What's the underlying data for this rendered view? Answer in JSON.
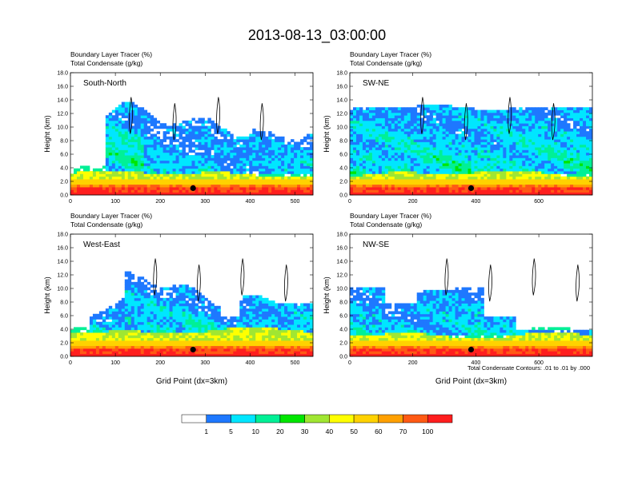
{
  "figure": {
    "title": "2013-08-13_03:00:00",
    "contour_note": "Total Condensate Contours: .01 to .01 by .000"
  },
  "colors": {
    "levels": [
      "#ffffff",
      "#1e78ff",
      "#00e6ff",
      "#00f096",
      "#00e600",
      "#a0e632",
      "#ffff00",
      "#ffd200",
      "#ffa000",
      "#ff5a14",
      "#ff1e1e"
    ],
    "contour": "#000000"
  },
  "chart_data": [
    {
      "type": "heatmap",
      "panel": "top-left",
      "label": "South-North",
      "subtitle1": "Boundary Layer Tracer   (%)",
      "subtitle2": "Total Condensate   (g/kg)",
      "ylabel": "Height (km)",
      "xlabel": "",
      "xlim": [
        0,
        540
      ],
      "ylim": [
        0,
        18
      ],
      "xticks": [
        "0",
        "100",
        "200",
        "300",
        "400",
        "500"
      ],
      "yticks": [
        "0.0",
        "2.0",
        "4.0",
        "6.0",
        "8.0",
        "10.0",
        "12.0",
        "14.0",
        "16.0",
        "18.0"
      ],
      "dot": [
        273,
        1.0
      ]
    },
    {
      "type": "heatmap",
      "panel": "top-right",
      "label": "SW-NE",
      "subtitle1": "Boundary Layer Tracer   (%)",
      "subtitle2": "Total Condensate   (g/kg)",
      "ylabel": "Height (km)",
      "xlabel": "",
      "xlim": [
        0,
        770
      ],
      "ylim": [
        0,
        18
      ],
      "xticks": [
        "0",
        "200",
        "400",
        "600"
      ],
      "yticks": [
        "0.0",
        "2.0",
        "4.0",
        "6.0",
        "8.0",
        "10.0",
        "12.0",
        "14.0",
        "16.0",
        "18.0"
      ],
      "dot": [
        385,
        1.0
      ]
    },
    {
      "type": "heatmap",
      "panel": "bottom-left",
      "label": "West-East",
      "subtitle1": "Boundary Layer Tracer   (%)",
      "subtitle2": "Total Condensate   (g/kg)",
      "ylabel": "Height (km)",
      "xlabel": "Grid Point (dx=3km)",
      "xlim": [
        0,
        540
      ],
      "ylim": [
        0,
        18
      ],
      "xticks": [
        "0",
        "100",
        "200",
        "300",
        "400",
        "500"
      ],
      "yticks": [
        "0.0",
        "2.0",
        "4.0",
        "6.0",
        "8.0",
        "10.0",
        "12.0",
        "14.0",
        "16.0",
        "18.0"
      ],
      "dot": [
        273,
        1.0
      ]
    },
    {
      "type": "heatmap",
      "panel": "bottom-right",
      "label": "NW-SE",
      "subtitle1": "Boundary Layer Tracer   (%)",
      "subtitle2": "Total Condensate   (g/kg)",
      "ylabel": "Height (km)",
      "xlabel": "Grid Point (dx=3km)",
      "xlim": [
        0,
        770
      ],
      "ylim": [
        0,
        18
      ],
      "xticks": [
        "0",
        "200",
        "400",
        "600"
      ],
      "yticks": [
        "0.0",
        "2.0",
        "4.0",
        "6.0",
        "8.0",
        "10.0",
        "12.0",
        "14.0",
        "16.0",
        "18.0"
      ],
      "dot": [
        385,
        1.0
      ]
    }
  ],
  "colorbar": {
    "labels": [
      "1",
      "5",
      "10",
      "20",
      "30",
      "40",
      "50",
      "60",
      "70",
      "100"
    ]
  }
}
